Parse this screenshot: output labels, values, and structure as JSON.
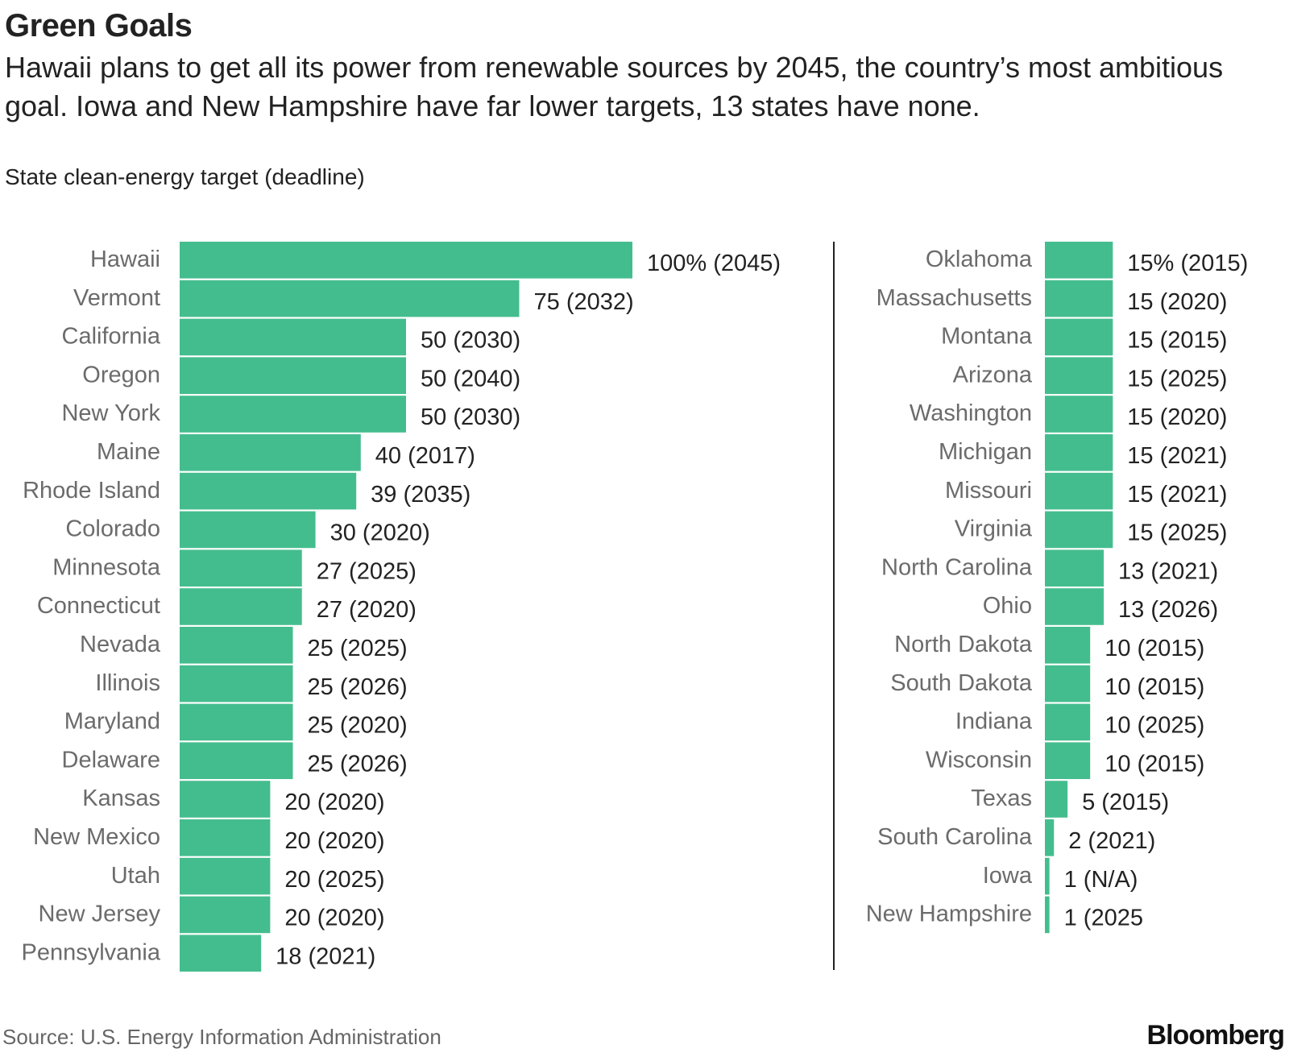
{
  "title": "Green Goals",
  "subtitle": "Hawaii plans to get all its power from renewable sources by 2045, the country’s most ambitious goal. Iowa and New Hampshire have far lower targets, 13 states have none.",
  "unit_label": "State clean-energy target (deadline)",
  "source": "Source: U.S. Energy Information Administration",
  "brand": "Bloomberg",
  "colors": {
    "bar": "#44bd8e",
    "state_label": "#6b6b6b",
    "value_label": "#222222",
    "divider": "#222222"
  },
  "chart_data": [
    {
      "type": "bar",
      "orientation": "horizontal",
      "xlim": [
        0,
        100
      ],
      "categories": [
        "Hawaii",
        "Vermont",
        "California",
        "Oregon",
        "New York",
        "Maine",
        "Rhode Island",
        "Colorado",
        "Minnesota",
        "Connecticut",
        "Nevada",
        "Illinois",
        "Maryland",
        "Delaware",
        "Kansas",
        "New Mexico",
        "Utah",
        "New Jersey",
        "Pennsylvania"
      ],
      "values": [
        100,
        75,
        50,
        50,
        50,
        40,
        39,
        30,
        27,
        27,
        25,
        25,
        25,
        25,
        20,
        20,
        20,
        20,
        18
      ],
      "labels": [
        "100% (2045)",
        "75  (2032)",
        "50 (2030)",
        "50 (2040)",
        "50 (2030)",
        "40 (2017)",
        "39 (2035)",
        "30 (2020)",
        "27 (2025)",
        "27 (2020)",
        "25 (2025)",
        "25 (2026)",
        "25 (2020)",
        "25 (2026)",
        "20 (2020)",
        "20 (2020)",
        "20 (2025)",
        "20 (2020)",
        "18 (2021)"
      ]
    },
    {
      "type": "bar",
      "orientation": "horizontal",
      "xlim": [
        0,
        100
      ],
      "categories": [
        "Oklahoma",
        "Massachusetts",
        "Montana",
        "Arizona",
        "Washington",
        "Michigan",
        "Missouri",
        "Virginia",
        "North Carolina",
        "Ohio",
        "North Dakota",
        "South Dakota",
        "Indiana",
        "Wisconsin",
        "Texas",
        "South Carolina",
        "Iowa",
        "New Hampshire"
      ],
      "values": [
        15,
        15,
        15,
        15,
        15,
        15,
        15,
        15,
        13,
        13,
        10,
        10,
        10,
        10,
        5,
        2,
        1,
        1
      ],
      "labels": [
        "15% (2015)",
        "15 (2020)",
        "15 (2015)",
        "15 (2025)",
        "15 (2020)",
        "15 (2021)",
        "15 (2021)",
        "15 (2025)",
        "13 (2021)",
        "13 (2026)",
        "10 (2015)",
        "10 (2015)",
        "10 (2025)",
        "10 (2015)",
        "5 (2015)",
        "2 (2021)",
        "1 (N/A)",
        "1 (2025"
      ]
    }
  ]
}
